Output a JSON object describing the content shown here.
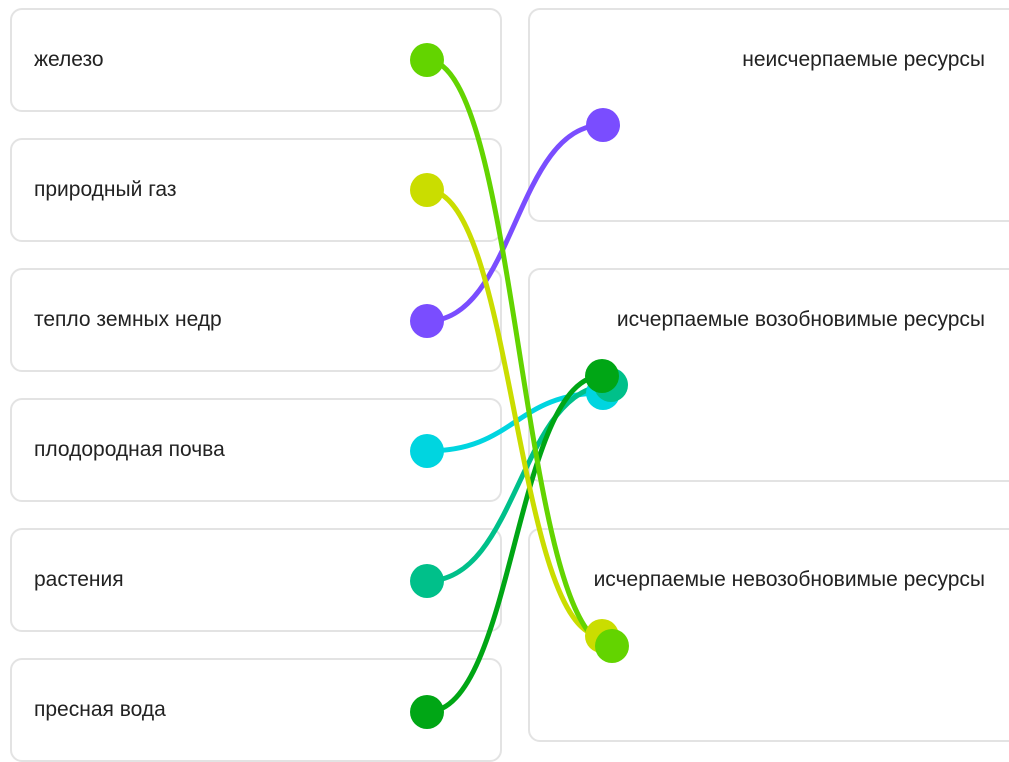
{
  "left_items": [
    {
      "label": "железо",
      "color": "#63d400"
    },
    {
      "label": "природный газ",
      "color": "#cadd00"
    },
    {
      "label": "тепло земных недр",
      "color": "#7a4dff"
    },
    {
      "label": "плодородная почва",
      "color": "#00d5e0"
    },
    {
      "label": "растения",
      "color": "#00c08a"
    },
    {
      "label": "пресная вода",
      "color": "#00a615"
    }
  ],
  "right_items": [
    {
      "label": "неисчерпаемые ресурсы"
    },
    {
      "label": "исчерпаемые возобновимые ресурсы"
    },
    {
      "label": "исчерпаемые невозобновимые ресурсы"
    }
  ],
  "connections": [
    {
      "from": "тепло земных недр",
      "to": "неисчерпаемые ресурсы",
      "color": "#7a4dff"
    },
    {
      "from": "плодородная почва",
      "to": "исчерпаемые возобновимые ресурсы",
      "color": "#00d5e0"
    },
    {
      "from": "растения",
      "to": "исчерпаемые возобновимые ресурсы",
      "color": "#00c08a"
    },
    {
      "from": "пресная вода",
      "to": "исчерпаемые возобновимые ресурсы",
      "color": "#00a615"
    },
    {
      "from": "природный газ",
      "to": "исчерпаемые невозобновимые ресурсы",
      "color": "#cadd00"
    },
    {
      "from": "железо",
      "to": "исчерпаемые невозобновимые ресурсы",
      "color": "#63d400"
    }
  ]
}
